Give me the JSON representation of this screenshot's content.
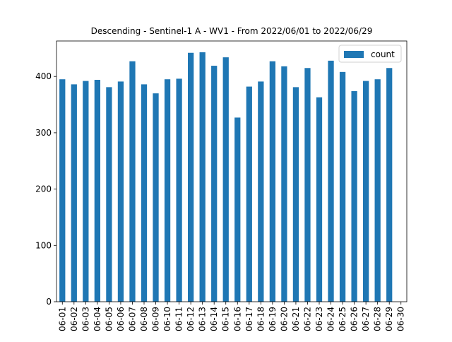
{
  "chart_data": {
    "type": "bar",
    "title": "Descending - Sentinel-1 A - WV1 - From 2022/06/01 to 2022/06/29",
    "xlabel": "",
    "ylabel": "",
    "ylim": [
      0,
      463
    ],
    "yticks": [
      0,
      100,
      200,
      300,
      400
    ],
    "legend": "top-right",
    "grid": false,
    "bar_color": "#1f77b4",
    "categories": [
      "06-01",
      "06-02",
      "06-03",
      "06-04",
      "06-05",
      "06-06",
      "06-07",
      "06-08",
      "06-09",
      "06-10",
      "06-11",
      "06-12",
      "06-13",
      "06-14",
      "06-15",
      "06-16",
      "06-17",
      "06-18",
      "06-19",
      "06-20",
      "06-21",
      "06-22",
      "06-23",
      "06-24",
      "06-25",
      "06-26",
      "06-27",
      "06-28",
      "06-29",
      "06-30"
    ],
    "series": [
      {
        "name": "count",
        "values": [
          395,
          386,
          392,
          394,
          381,
          391,
          427,
          386,
          370,
          395,
          396,
          442,
          443,
          419,
          434,
          327,
          382,
          391,
          427,
          418,
          381,
          415,
          363,
          428,
          408,
          374,
          392,
          395,
          415,
          0
        ]
      }
    ]
  }
}
